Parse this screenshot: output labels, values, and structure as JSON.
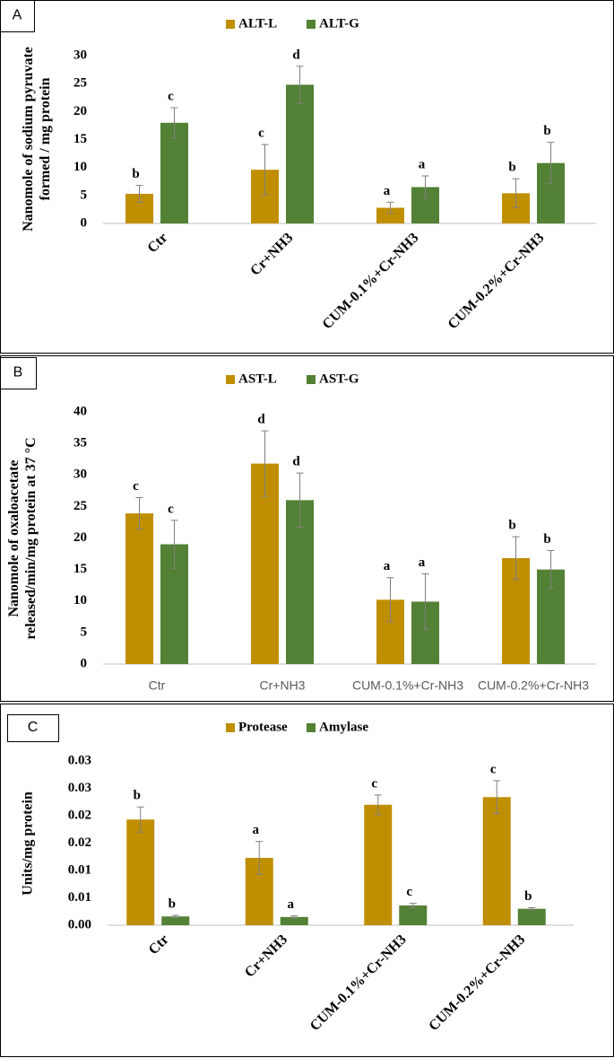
{
  "chart_data": [
    {
      "type": "bar",
      "panel": "A",
      "y_label": [
        "Nanomole of sodium pyruvate",
        "formed / mg protein"
      ],
      "categories": [
        "Ctr",
        "Cr+NH3",
        "CUM-0.1%+Cr-NH3",
        "CUM-0.2%+Cr-NH3"
      ],
      "series": [
        {
          "name": "ALT-L",
          "color": "#bf8f00",
          "values": [
            5.3,
            9.6,
            2.8,
            5.4
          ],
          "errors": [
            1.5,
            4.5,
            1.0,
            2.6
          ],
          "letters": [
            "b",
            "c",
            "a",
            "b"
          ]
        },
        {
          "name": "ALT-G",
          "color": "#538135",
          "values": [
            18,
            24.8,
            6.5,
            10.8
          ],
          "errors": [
            2.7,
            3.3,
            2.0,
            3.7
          ],
          "letters": [
            "c",
            "d",
            "a",
            "b"
          ]
        }
      ],
      "ylim": [
        0,
        30
      ],
      "yticks": [
        0,
        5,
        10,
        15,
        20,
        25,
        30
      ],
      "legend": "top"
    },
    {
      "type": "bar",
      "panel": "B",
      "y_label": [
        "Nanomole of oxaloacetate",
        "released/min/mg protein at 37 °C"
      ],
      "categories": [
        "Ctr",
        "Cr+NH3",
        "CUM-0.1%+Cr-NH3",
        "CUM-0.2%+Cr-NH3"
      ],
      "series": [
        {
          "name": "AST-L",
          "color": "#bf8f00",
          "values": [
            23.9,
            31.8,
            10.2,
            16.8
          ],
          "errors": [
            2.5,
            5.2,
            3.5,
            3.4
          ],
          "letters": [
            "c",
            "d",
            "a",
            "b"
          ]
        },
        {
          "name": "AST-G",
          "color": "#538135",
          "values": [
            19,
            26,
            9.9,
            15
          ],
          "errors": [
            3.8,
            4.3,
            4.4,
            3.0
          ],
          "letters": [
            "c",
            "d",
            "a",
            "b"
          ]
        }
      ],
      "ylim": [
        0,
        40
      ],
      "yticks": [
        0,
        5,
        10,
        15,
        20,
        25,
        30,
        35,
        40
      ],
      "legend": "top"
    },
    {
      "type": "bar",
      "panel": "C",
      "y_label": [
        "Units/mg protein"
      ],
      "categories": [
        "Ctr",
        "Cr+NH3",
        "CUM-0.1%+Cr-NH3",
        "CUM-0.2%+Cr-NH3"
      ],
      "series": [
        {
          "name": "Protease",
          "color": "#bf8f00",
          "values": [
            0.0193,
            0.0123,
            0.022,
            0.0234
          ],
          "errors": [
            0.0023,
            0.003,
            0.0018,
            0.003
          ],
          "letters": [
            "b",
            "a",
            "c",
            "c"
          ]
        },
        {
          "name": "Amylase",
          "color": "#538135",
          "values": [
            0.0016,
            0.0015,
            0.0036,
            0.003
          ],
          "errors": [
            0.0002,
            0.0002,
            0.0004,
            0.0002
          ],
          "letters": [
            "b",
            "a",
            "c",
            "b"
          ]
        }
      ],
      "ylim": [
        0,
        0.03
      ],
      "yticks": [
        {
          "value": 0,
          "label": "0.00"
        },
        {
          "value": 0.005,
          "label": "0.01"
        },
        {
          "value": 0.01,
          "label": "0.01"
        },
        {
          "value": 0.015,
          "label": "0.02"
        },
        {
          "value": 0.02,
          "label": "0.02"
        },
        {
          "value": 0.025,
          "label": "0.03"
        },
        {
          "value": 0.03,
          "label": "0.03"
        }
      ],
      "legend": "top"
    }
  ]
}
